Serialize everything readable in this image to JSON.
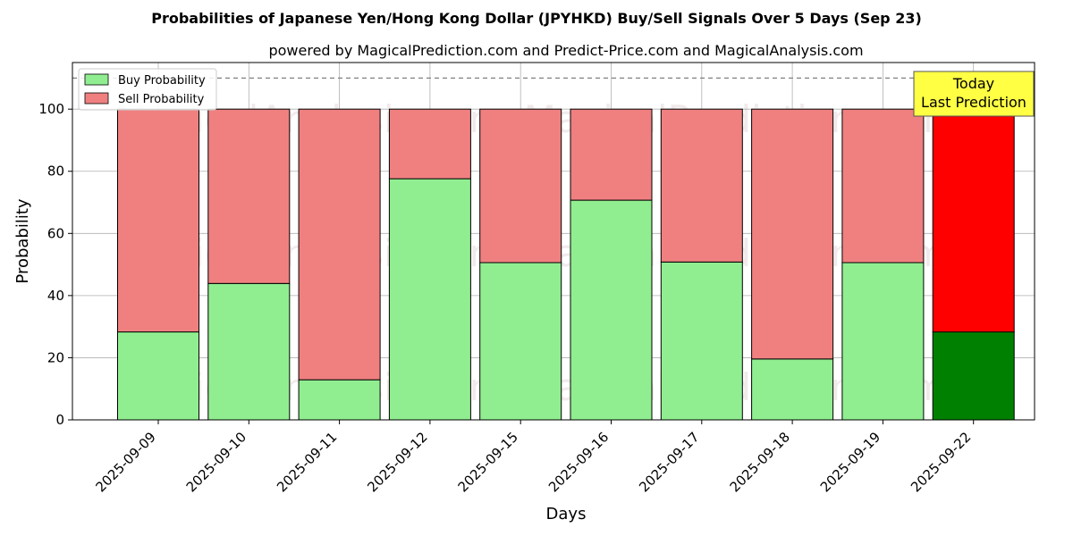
{
  "chart_data": {
    "type": "bar",
    "stacked": true,
    "title": "Probabilities of Japanese Yen/Hong Kong Dollar (JPYHKD) Buy/Sell Signals Over 5 Days (Sep 23)",
    "subtitle": "powered by MagicalPrediction.com and Predict-Price.com and MagicalAnalysis.com",
    "xlabel": "Days",
    "ylabel": "Probability",
    "ylim": [
      0,
      115
    ],
    "yticks": [
      0,
      20,
      40,
      60,
      80,
      100
    ],
    "grid": true,
    "legend_position": "upper-left",
    "categories": [
      "2025-09-09",
      "2025-09-10",
      "2025-09-11",
      "2025-09-12",
      "2025-09-15",
      "2025-09-16",
      "2025-09-17",
      "2025-09-18",
      "2025-09-19",
      "2025-09-22"
    ],
    "series": [
      {
        "name": "Buy Probability",
        "color": "#90ee90",
        "values": [
          28.3,
          43.9,
          12.9,
          77.6,
          50.6,
          70.7,
          50.8,
          19.6,
          50.6,
          28.3
        ]
      },
      {
        "name": "Sell Probability",
        "color": "#f08080",
        "values": [
          71.7,
          56.1,
          87.1,
          22.4,
          49.4,
          29.3,
          49.2,
          80.4,
          49.4,
          71.7
        ]
      }
    ],
    "highlight": {
      "index": 9,
      "buy_color": "#008000",
      "sell_color": "#ff0000",
      "label_line1": "Today",
      "label_line2": "Last Prediction",
      "box_color": "#ffff44"
    },
    "reference_line": {
      "y": 110,
      "style": "dashed",
      "color": "#808080"
    },
    "watermarks": [
      "MagicalAnalysis.com",
      "MagicalPrediction.com"
    ]
  }
}
